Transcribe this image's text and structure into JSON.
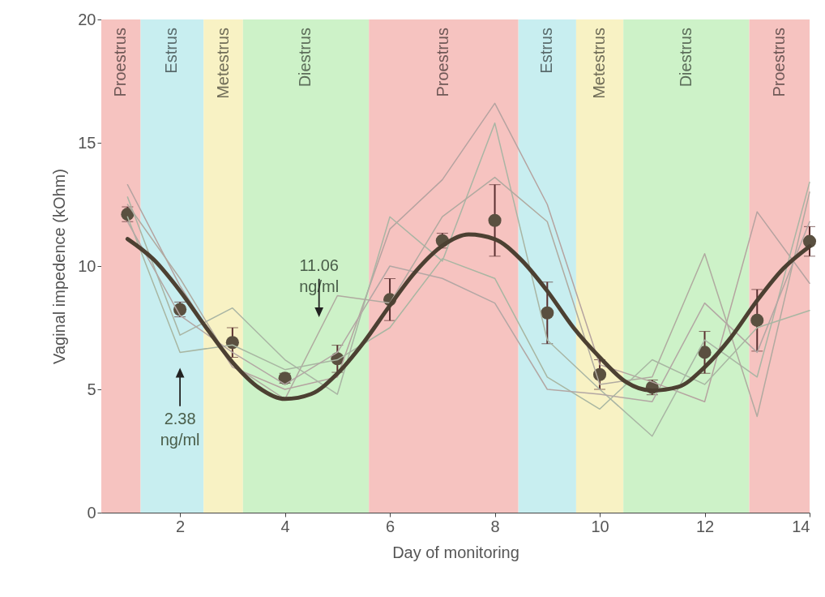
{
  "chart_data": {
    "type": "line",
    "xlabel": "Day of monitoring",
    "ylabel": "Vaginal impedence (kOhm)",
    "x": [
      1,
      2,
      3,
      4,
      5,
      6,
      7,
      8,
      9,
      10,
      11,
      12,
      13,
      14
    ],
    "xlim": [
      0.5,
      14
    ],
    "xticks": [
      2,
      4,
      6,
      8,
      10,
      12,
      14
    ],
    "ylim": [
      0,
      20
    ],
    "yticks": [
      0,
      5,
      10,
      15,
      20
    ],
    "bands": [
      {
        "axis": "x",
        "from": 0.5,
        "to": 1.25,
        "label": "Proestrus",
        "color": "#f6c3c0"
      },
      {
        "axis": "x",
        "from": 1.25,
        "to": 2.45,
        "label": "Estrus",
        "color": "#c8eef0"
      },
      {
        "axis": "x",
        "from": 2.45,
        "to": 3.2,
        "label": "Metestrus",
        "color": "#f8f2c4"
      },
      {
        "axis": "x",
        "from": 3.2,
        "to": 5.6,
        "label": "Diestrus",
        "color": "#cdf2c8"
      },
      {
        "axis": "x",
        "from": 5.6,
        "to": 8.45,
        "label": "Proestrus",
        "color": "#f6c3c0"
      },
      {
        "axis": "x",
        "from": 8.45,
        "to": 9.55,
        "label": "Estrus",
        "color": "#c8eef0"
      },
      {
        "axis": "x",
        "from": 9.55,
        "to": 10.45,
        "label": "Metestrus",
        "color": "#f8f2c4"
      },
      {
        "axis": "x",
        "from": 10.45,
        "to": 12.85,
        "label": "Diestrus",
        "color": "#cdf2c8"
      },
      {
        "axis": "x",
        "from": 12.85,
        "to": 14,
        "label": "Proestrus",
        "color": "#f6c3c0"
      }
    ],
    "annotations": [
      "11.06 ng/ml",
      "2.38 ng/ml"
    ],
    "series": [
      {
        "color": "#b5a3a0",
        "values": [
          13.3,
          9.2,
          5.9,
          5.0,
          5.5,
          11.5,
          13.5,
          16.6,
          12.5,
          6.0,
          5.3,
          4.5,
          12.2,
          9.3
        ]
      },
      {
        "color": "#a9b5a4",
        "values": [
          12.8,
          7.2,
          8.3,
          6.2,
          4.8,
          12.0,
          10.2,
          15.8,
          7.0,
          5.0,
          3.1,
          7.0,
          5.5,
          13.4
        ]
      },
      {
        "color": "#b0aaa0",
        "values": [
          12.5,
          9.5,
          6.0,
          4.6,
          8.8,
          8.5,
          12.0,
          13.6,
          11.8,
          5.2,
          5.5,
          10.5,
          3.9,
          13.0
        ]
      },
      {
        "color": "#a8b6a2",
        "values": [
          12.0,
          6.5,
          6.8,
          5.8,
          6.2,
          7.5,
          10.3,
          9.5,
          5.5,
          4.2,
          6.2,
          5.2,
          7.5,
          8.2
        ]
      },
      {
        "color": "#b3a7a4",
        "values": [
          11.8,
          8.0,
          6.5,
          5.2,
          6.5,
          10.0,
          9.5,
          8.5,
          5.0,
          4.8,
          4.5,
          8.5,
          6.5,
          11.8
        ]
      },
      {
        "color": "#4c4032",
        "x": [
          1,
          1.5,
          2,
          2.5,
          3,
          3.5,
          4,
          4.5,
          5,
          5.5,
          6,
          6.5,
          7,
          7.5,
          8,
          8.5,
          9,
          9.5,
          10,
          10.5,
          11,
          11.5,
          12,
          12.5,
          13,
          13.5,
          14
        ],
        "values": [
          11.1,
          10.26,
          8.99,
          7.5,
          6.1,
          5.07,
          4.61,
          4.81,
          5.64,
          6.9,
          8.4,
          9.8,
          10.82,
          11.28,
          11.09,
          10.26,
          8.99,
          7.5,
          6.3,
          5.3,
          4.95,
          5.1,
          5.9,
          7.1,
          8.6,
          9.9,
          10.8
        ]
      },
      {
        "type": "scatter",
        "marker": "circle",
        "color": "#5a5040",
        "values": [
          12.1,
          8.24,
          6.9,
          5.45,
          6.24,
          8.64,
          11.03,
          11.85,
          8.1,
          5.6,
          5.08,
          6.5,
          7.8,
          11.0
        ],
        "errors": [
          0.3,
          0.3,
          0.6,
          0.2,
          0.55,
          0.85,
          0.3,
          1.45,
          1.25,
          0.6,
          0.3,
          0.85,
          1.25,
          0.6
        ]
      }
    ]
  }
}
